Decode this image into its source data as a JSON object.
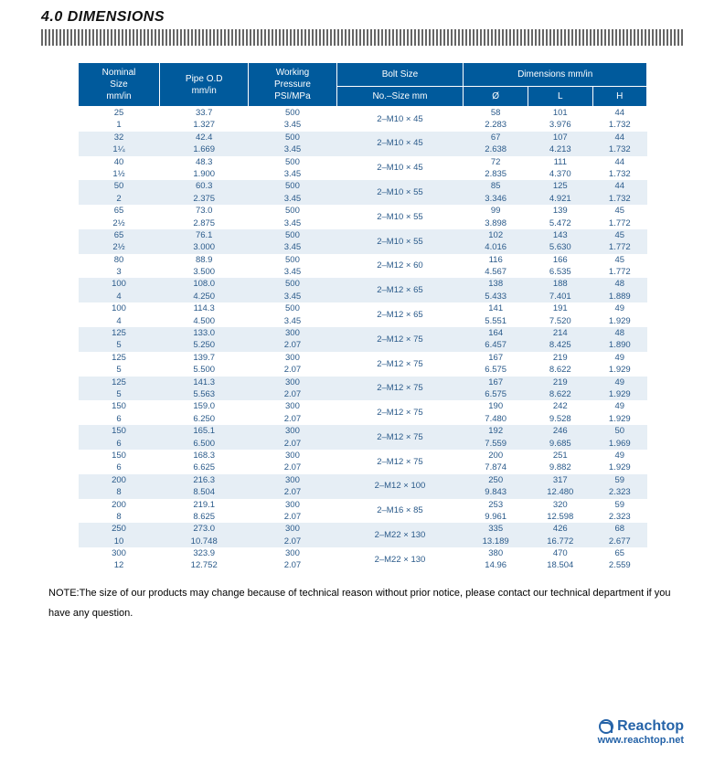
{
  "section_title": "4.0 DIMENSIONS",
  "note": "NOTE:The size of our products may change because of technical reason without prior notice, please contact our technical department if you have any question.",
  "brand": "Reachtop",
  "url": "www.reachtop.net",
  "colors": {
    "header_bg": "#005a9c",
    "header_fg": "#ffffff",
    "row_alt_bg": "#e6eef5",
    "cell_fg": "#2a5a8a",
    "brand": "#2563a8"
  },
  "table": {
    "headers": {
      "nominal": "Nominal\nSize\nmm/in",
      "pipe_od": "Pipe O.D\nmm/in",
      "working": "Working\nPressure\nPSI/MPa",
      "bolt": "Bolt Size",
      "bolt_sub": "No.–Size mm",
      "dimensions": "Dimensions mm/in",
      "O": "Ø",
      "L": "L",
      "H": "H"
    },
    "rows": [
      {
        "alt": false,
        "nom": [
          "25",
          "1"
        ],
        "pod": [
          "33.7",
          "1.327"
        ],
        "wp": [
          "500",
          "3.45"
        ],
        "bolt": "2–M10 × 45",
        "o": [
          "58",
          "2.283"
        ],
        "l": [
          "101",
          "3.976"
        ],
        "h": [
          "44",
          "1.732"
        ]
      },
      {
        "alt": true,
        "nom": [
          "32",
          "1¼"
        ],
        "pod": [
          "42.4",
          "1.669"
        ],
        "wp": [
          "500",
          "3.45"
        ],
        "bolt": "2–M10 × 45",
        "o": [
          "67",
          "2.638"
        ],
        "l": [
          "107",
          "4.213"
        ],
        "h": [
          "44",
          "1.732"
        ]
      },
      {
        "alt": false,
        "nom": [
          "40",
          "1½"
        ],
        "pod": [
          "48.3",
          "1.900"
        ],
        "wp": [
          "500",
          "3.45"
        ],
        "bolt": "2–M10 × 45",
        "o": [
          "72",
          "2.835"
        ],
        "l": [
          "111",
          "4.370"
        ],
        "h": [
          "44",
          "1.732"
        ]
      },
      {
        "alt": true,
        "nom": [
          "50",
          "2"
        ],
        "pod": [
          "60.3",
          "2.375"
        ],
        "wp": [
          "500",
          "3.45"
        ],
        "bolt": "2–M10 × 55",
        "o": [
          "85",
          "3.346"
        ],
        "l": [
          "125",
          "4.921"
        ],
        "h": [
          "44",
          "1.732"
        ]
      },
      {
        "alt": false,
        "nom": [
          "65",
          "2½"
        ],
        "pod": [
          "73.0",
          "2.875"
        ],
        "wp": [
          "500",
          "3.45"
        ],
        "bolt": "2–M10 × 55",
        "o": [
          "99",
          "3.898"
        ],
        "l": [
          "139",
          "5.472"
        ],
        "h": [
          "45",
          "1.772"
        ]
      },
      {
        "alt": true,
        "nom": [
          "65",
          "2½"
        ],
        "pod": [
          "76.1",
          "3.000"
        ],
        "wp": [
          "500",
          "3.45"
        ],
        "bolt": "2–M10 × 55",
        "o": [
          "102",
          "4.016"
        ],
        "l": [
          "143",
          "5.630"
        ],
        "h": [
          "45",
          "1.772"
        ]
      },
      {
        "alt": false,
        "nom": [
          "80",
          "3"
        ],
        "pod": [
          "88.9",
          "3.500"
        ],
        "wp": [
          "500",
          "3.45"
        ],
        "bolt": "2–M12 × 60",
        "o": [
          "116",
          "4.567"
        ],
        "l": [
          "166",
          "6.535"
        ],
        "h": [
          "45",
          "1.772"
        ]
      },
      {
        "alt": true,
        "nom": [
          "100",
          "4"
        ],
        "pod": [
          "108.0",
          "4.250"
        ],
        "wp": [
          "500",
          "3.45"
        ],
        "bolt": "2–M12 × 65",
        "o": [
          "138",
          "5.433"
        ],
        "l": [
          "188",
          "7.401"
        ],
        "h": [
          "48",
          "1.889"
        ]
      },
      {
        "alt": false,
        "nom": [
          "100",
          "4"
        ],
        "pod": [
          "114.3",
          "4.500"
        ],
        "wp": [
          "500",
          "3.45"
        ],
        "bolt": "2–M12 × 65",
        "o": [
          "141",
          "5.551"
        ],
        "l": [
          "191",
          "7.520"
        ],
        "h": [
          "49",
          "1.929"
        ]
      },
      {
        "alt": true,
        "nom": [
          "125",
          "5"
        ],
        "pod": [
          "133.0",
          "5.250"
        ],
        "wp": [
          "300",
          "2.07"
        ],
        "bolt": "2–M12 × 75",
        "o": [
          "164",
          "6.457"
        ],
        "l": [
          "214",
          "8.425"
        ],
        "h": [
          "48",
          "1.890"
        ]
      },
      {
        "alt": false,
        "nom": [
          "125",
          "5"
        ],
        "pod": [
          "139.7",
          "5.500"
        ],
        "wp": [
          "300",
          "2.07"
        ],
        "bolt": "2–M12 × 75",
        "o": [
          "167",
          "6.575"
        ],
        "l": [
          "219",
          "8.622"
        ],
        "h": [
          "49",
          "1.929"
        ]
      },
      {
        "alt": true,
        "nom": [
          "125",
          "5"
        ],
        "pod": [
          "141.3",
          "5.563"
        ],
        "wp": [
          "300",
          "2.07"
        ],
        "bolt": "2–M12 × 75",
        "o": [
          "167",
          "6.575"
        ],
        "l": [
          "219",
          "8.622"
        ],
        "h": [
          "49",
          "1.929"
        ]
      },
      {
        "alt": false,
        "nom": [
          "150",
          "6"
        ],
        "pod": [
          "159.0",
          "6.250"
        ],
        "wp": [
          "300",
          "2.07"
        ],
        "bolt": "2–M12 × 75",
        "o": [
          "190",
          "7.480"
        ],
        "l": [
          "242",
          "9.528"
        ],
        "h": [
          "49",
          "1.929"
        ]
      },
      {
        "alt": true,
        "nom": [
          "150",
          "6"
        ],
        "pod": [
          "165.1",
          "6.500"
        ],
        "wp": [
          "300",
          "2.07"
        ],
        "bolt": "2–M12 × 75",
        "o": [
          "192",
          "7.559"
        ],
        "l": [
          "246",
          "9.685"
        ],
        "h": [
          "50",
          "1.969"
        ]
      },
      {
        "alt": false,
        "nom": [
          "150",
          "6"
        ],
        "pod": [
          "168.3",
          "6.625"
        ],
        "wp": [
          "300",
          "2.07"
        ],
        "bolt": "2–M12 × 75",
        "o": [
          "200",
          "7.874"
        ],
        "l": [
          "251",
          "9.882"
        ],
        "h": [
          "49",
          "1.929"
        ]
      },
      {
        "alt": true,
        "nom": [
          "200",
          "8"
        ],
        "pod": [
          "216.3",
          "8.504"
        ],
        "wp": [
          "300",
          "2.07"
        ],
        "bolt": "2–M12 × 100",
        "o": [
          "250",
          "9.843"
        ],
        "l": [
          "317",
          "12.480"
        ],
        "h": [
          "59",
          "2.323"
        ]
      },
      {
        "alt": false,
        "nom": [
          "200",
          "8"
        ],
        "pod": [
          "219.1",
          "8.625"
        ],
        "wp": [
          "300",
          "2.07"
        ],
        "bolt": "2–M16 × 85",
        "o": [
          "253",
          "9.961"
        ],
        "l": [
          "320",
          "12.598"
        ],
        "h": [
          "59",
          "2.323"
        ]
      },
      {
        "alt": true,
        "nom": [
          "250",
          "10"
        ],
        "pod": [
          "273.0",
          "10.748"
        ],
        "wp": [
          "300",
          "2.07"
        ],
        "bolt": "2–M22 × 130",
        "o": [
          "335",
          "13.189"
        ],
        "l": [
          "426",
          "16.772"
        ],
        "h": [
          "68",
          "2.677"
        ]
      },
      {
        "alt": false,
        "nom": [
          "300",
          "12"
        ],
        "pod": [
          "323.9",
          "12.752"
        ],
        "wp": [
          "300",
          "2.07"
        ],
        "bolt": "2–M22 × 130",
        "o": [
          "380",
          "14.96"
        ],
        "l": [
          "470",
          "18.504"
        ],
        "h": [
          "65",
          "2.559"
        ]
      }
    ]
  }
}
